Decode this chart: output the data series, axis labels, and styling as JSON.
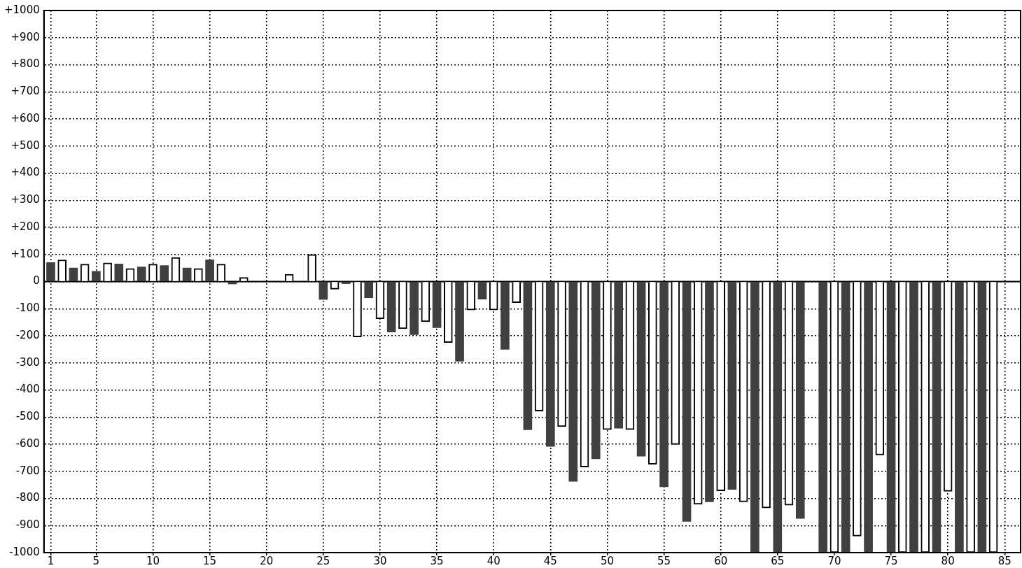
{
  "chart_data": {
    "type": "bar",
    "xlim": [
      0.4,
      86.4
    ],
    "xticks": [
      1,
      5,
      10,
      15,
      20,
      25,
      30,
      35,
      40,
      45,
      50,
      55,
      60,
      65,
      70,
      75,
      80,
      85
    ],
    "ylim": [
      -1000,
      1000
    ],
    "yticks": [
      {
        "value": 1000,
        "label": "+1000"
      },
      {
        "value": 900,
        "label": "+900"
      },
      {
        "value": 800,
        "label": "+800"
      },
      {
        "value": 700,
        "label": "+700"
      },
      {
        "value": 600,
        "label": "+600"
      },
      {
        "value": 500,
        "label": "+500"
      },
      {
        "value": 400,
        "label": "+400"
      },
      {
        "value": 300,
        "label": "+300"
      },
      {
        "value": 200,
        "label": "+200"
      },
      {
        "value": 100,
        "label": "+100"
      },
      0,
      -100,
      -200,
      -300,
      -400,
      -500,
      -600,
      -700,
      -800,
      -900,
      -1000
    ],
    "grid": true,
    "series": [
      {
        "color": "#404040",
        "x": [
          1,
          3,
          5,
          7,
          9,
          11,
          13,
          15,
          17,
          19,
          21,
          23,
          25,
          27,
          29,
          31,
          33,
          35,
          37,
          39,
          41,
          43,
          45,
          47,
          49,
          51,
          53,
          55,
          57,
          59,
          61,
          63,
          65,
          67,
          69,
          71,
          73,
          75,
          77,
          79,
          81,
          83
        ],
        "values": [
          70,
          50,
          38,
          65,
          54,
          59,
          50,
          80,
          -9,
          null,
          null,
          null,
          -66,
          -8,
          -60,
          -186,
          -196,
          -170,
          -294,
          -65,
          -250,
          -547,
          -608,
          -737,
          -654,
          -541,
          -644,
          -757,
          -885,
          -813,
          -767,
          -1000,
          -1000,
          -874,
          -1000,
          -1000,
          -1000,
          -1000,
          -1000,
          -1000,
          -1000,
          -1000
        ]
      },
      {
        "color": "#ffffff",
        "x": [
          2,
          4,
          6,
          8,
          10,
          12,
          14,
          16,
          18,
          20,
          22,
          24,
          26,
          28,
          30,
          32,
          34,
          36,
          38,
          40,
          42,
          44,
          46,
          48,
          50,
          52,
          54,
          56,
          58,
          60,
          62,
          64,
          66,
          68,
          70,
          72,
          74,
          76,
          78,
          80,
          82,
          84
        ],
        "values": [
          80,
          64,
          69,
          48,
          64,
          89,
          48,
          64,
          15,
          null,
          27,
          100,
          -28,
          -204,
          -137,
          -174,
          -148,
          -225,
          -105,
          -105,
          -78,
          -478,
          -535,
          -684,
          -546,
          -546,
          -674,
          -601,
          -822,
          -772,
          -813,
          -835,
          -825,
          0,
          -1000,
          -939,
          -640,
          -1000,
          -1000,
          -774,
          -1000,
          -1000
        ]
      }
    ]
  }
}
